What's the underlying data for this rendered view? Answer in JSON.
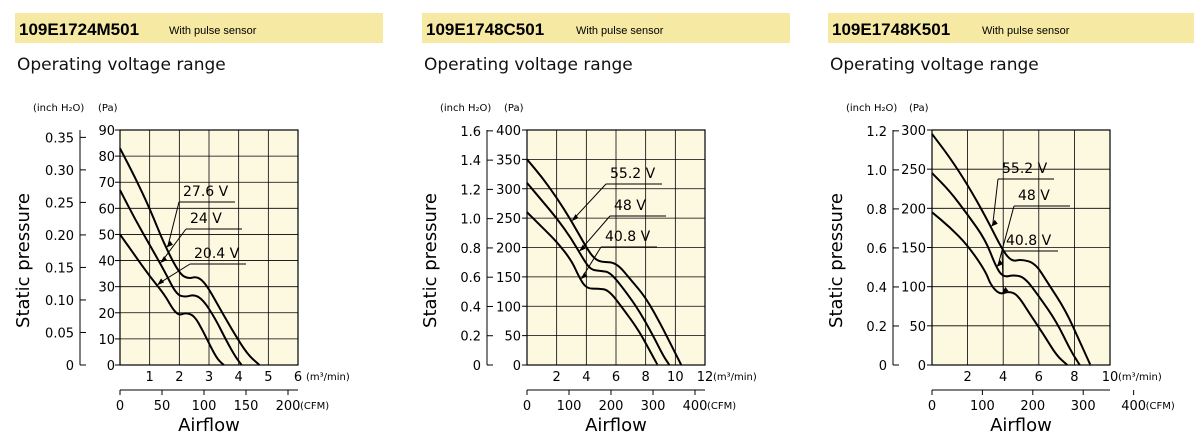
{
  "colors": {
    "header_bg": "#f5e9a3",
    "plot_bg": "#fdf9e1",
    "line": "#000000"
  },
  "chart_data": [
    {
      "type": "line",
      "model": "109E1724M501",
      "sensor": "With pulse sensor",
      "title": "Operating voltage range",
      "xlabel": "Airflow",
      "ylabel": "Static pressure",
      "y_unit_pa": "(Pa)",
      "y_unit_inch": "(inch H₂O)",
      "x_unit_m3": "(m³/min)",
      "x_unit_cfm": "(CFM)",
      "xlim": [
        0,
        6
      ],
      "ylim": [
        0,
        90
      ],
      "x_ticks": [
        1,
        2,
        3,
        4,
        5,
        6
      ],
      "y_ticks": [
        0,
        10,
        20,
        30,
        40,
        50,
        60,
        70,
        80,
        90
      ],
      "inch_ticks": [
        "0",
        "0.05",
        "0.10",
        "0.15",
        "0.20",
        "0.25",
        "0.30",
        "0.35"
      ],
      "inch_values": [
        0,
        0.05,
        0.1,
        0.15,
        0.2,
        0.25,
        0.3,
        0.35
      ],
      "cfm_ticks": [
        "0",
        "50",
        "100",
        "150",
        "200"
      ],
      "cfm_values": [
        0,
        50,
        100,
        150,
        200
      ],
      "grid": true,
      "series": [
        {
          "name": "27.6 V",
          "x": [
            0,
            0.5,
            1,
            1.5,
            2.0,
            2.3,
            2.6,
            2.9,
            3.3,
            3.8,
            4.3,
            4.7
          ],
          "y": [
            83,
            72,
            60,
            46,
            35,
            33,
            34,
            31,
            23,
            13,
            4,
            0
          ]
        },
        {
          "name": "24 V",
          "x": [
            0,
            0.5,
            1,
            1.5,
            1.9,
            2.2,
            2.5,
            2.8,
            3.2,
            3.6,
            3.9,
            4.1
          ],
          "y": [
            67,
            56,
            46,
            36,
            27,
            26,
            27,
            25,
            18,
            9,
            3,
            0
          ]
        },
        {
          "name": "20.4 V",
          "x": [
            0,
            0.5,
            1,
            1.5,
            1.8,
            2.0,
            2.2,
            2.5,
            2.8,
            3.1,
            3.3,
            3.5
          ],
          "y": [
            50,
            42,
            34,
            27,
            21,
            19,
            20,
            19,
            13,
            6,
            2,
            0
          ]
        }
      ]
    },
    {
      "type": "line",
      "model": "109E1748C501",
      "sensor": "With pulse sensor",
      "title": "Operating voltage range",
      "xlabel": "Airflow",
      "ylabel": "Static pressure",
      "y_unit_pa": "(Pa)",
      "y_unit_inch": "(inch H₂O)",
      "x_unit_m3": "(m³/min)",
      "x_unit_cfm": "(CFM)",
      "xlim": [
        0,
        12
      ],
      "ylim": [
        0,
        400
      ],
      "x_ticks": [
        2,
        4,
        6,
        8,
        10,
        12
      ],
      "y_ticks": [
        0,
        50,
        100,
        150,
        200,
        250,
        300,
        350,
        400
      ],
      "inch_ticks": [
        "0",
        "0.2",
        "0.4",
        "0.6",
        "0.8",
        "1.0",
        "1.2",
        "1.4",
        "1.6"
      ],
      "inch_values": [
        0,
        0.2,
        0.4,
        0.6,
        0.8,
        1.0,
        1.2,
        1.4,
        1.6
      ],
      "cfm_ticks": [
        "0",
        "100",
        "200",
        "300",
        "400"
      ],
      "cfm_values": [
        0,
        100,
        200,
        300,
        400
      ],
      "grid": true,
      "series": [
        {
          "name": "55.2 V",
          "x": [
            0,
            1,
            2,
            3,
            4,
            4.5,
            5,
            6,
            7,
            8,
            9,
            9.8,
            10.4
          ],
          "y": [
            350,
            320,
            285,
            245,
            200,
            182,
            175,
            175,
            145,
            115,
            70,
            30,
            0
          ]
        },
        {
          "name": "48 V",
          "x": [
            0,
            1,
            2,
            3,
            3.8,
            4.3,
            5,
            5.6,
            6.5,
            7.5,
            8.5,
            9.2,
            9.6
          ],
          "y": [
            310,
            280,
            250,
            215,
            180,
            162,
            160,
            158,
            130,
            95,
            50,
            15,
            0
          ]
        },
        {
          "name": "40.8 V",
          "x": [
            0,
            1,
            2,
            3,
            3.5,
            4,
            4.8,
            5.5,
            6.5,
            7.5,
            8.2,
            8.8
          ],
          "y": [
            260,
            235,
            210,
            178,
            150,
            130,
            130,
            128,
            95,
            60,
            28,
            0
          ]
        }
      ]
    },
    {
      "type": "line",
      "model": "109E1748K501",
      "sensor": "With pulse sensor",
      "title": "Operating voltage range",
      "xlabel": "Airflow",
      "ylabel": "Static pressure",
      "y_unit_pa": "(Pa)",
      "y_unit_inch": "(inch H₂O)",
      "x_unit_m3": "(m³/min)",
      "x_unit_cfm": "(CFM)",
      "xlim": [
        0,
        10
      ],
      "ylim": [
        0,
        300
      ],
      "x_ticks": [
        2,
        4,
        6,
        8,
        10
      ],
      "y_ticks": [
        0,
        50,
        100,
        150,
        200,
        250,
        300
      ],
      "inch_ticks": [
        "0",
        "0.2",
        "0.4",
        "0.6",
        "0.8",
        "1.0",
        "1.2"
      ],
      "inch_values": [
        0,
        0.2,
        0.4,
        0.6,
        0.8,
        1.0,
        1.2
      ],
      "cfm_ticks": [
        "0",
        "100",
        "200",
        "300",
        "400"
      ],
      "cfm_values": [
        0,
        100,
        200,
        300,
        400
      ],
      "grid": true,
      "series": [
        {
          "name": "55.2 V",
          "x": [
            0,
            1,
            2,
            3,
            4,
            4.5,
            5,
            5.8,
            6.5,
            7.5,
            8.3,
            8.9
          ],
          "y": [
            295,
            265,
            230,
            190,
            145,
            132,
            135,
            130,
            105,
            70,
            30,
            0
          ]
        },
        {
          "name": "48 V",
          "x": [
            0,
            1,
            2,
            3,
            3.6,
            4,
            4.6,
            5.2,
            6,
            7,
            7.8,
            8.3
          ],
          "y": [
            245,
            222,
            192,
            160,
            125,
            112,
            115,
            112,
            88,
            55,
            18,
            0
          ]
        },
        {
          "name": "40.8 V",
          "x": [
            0,
            1,
            2,
            3,
            3.3,
            3.8,
            4.3,
            4.8,
            5.5,
            6.3,
            7,
            7.6
          ],
          "y": [
            195,
            176,
            153,
            120,
            102,
            90,
            94,
            90,
            65,
            38,
            12,
            0
          ]
        }
      ]
    }
  ]
}
